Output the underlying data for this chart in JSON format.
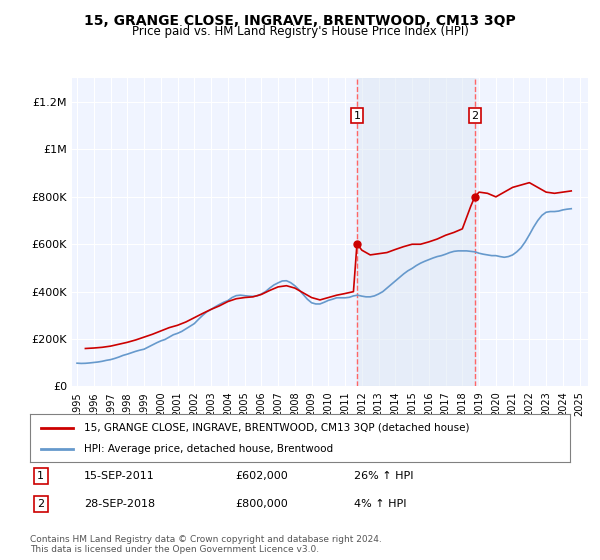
{
  "title": "15, GRANGE CLOSE, INGRAVE, BRENTWOOD, CM13 3QP",
  "subtitle": "Price paid vs. HM Land Registry's House Price Index (HPI)",
  "xlabel": "",
  "ylabel": "",
  "ylim": [
    0,
    1300000
  ],
  "xlim_start": 1995,
  "xlim_end": 2025.5,
  "yticks": [
    0,
    200000,
    400000,
    600000,
    800000,
    1000000,
    1200000
  ],
  "ytick_labels": [
    "£0",
    "£200K",
    "£400K",
    "£600K",
    "£800K",
    "£1M",
    "£1.2M"
  ],
  "xticks": [
    1995,
    1996,
    1997,
    1998,
    1999,
    2000,
    2001,
    2002,
    2003,
    2004,
    2005,
    2006,
    2007,
    2008,
    2009,
    2010,
    2011,
    2012,
    2013,
    2014,
    2015,
    2016,
    2017,
    2018,
    2019,
    2020,
    2021,
    2022,
    2023,
    2024,
    2025
  ],
  "property_color": "#cc0000",
  "hpi_color": "#6699cc",
  "background_color": "#ffffff",
  "plot_bg_color": "#f0f4ff",
  "grid_color": "#ffffff",
  "vline1_x": 2011.71,
  "vline2_x": 2018.74,
  "vline_color": "#ff6666",
  "marker1_x": 2011.71,
  "marker1_y": 602000,
  "marker2_x": 2018.74,
  "marker2_y": 800000,
  "legend_property": "15, GRANGE CLOSE, INGRAVE, BRENTWOOD, CM13 3QP (detached house)",
  "legend_hpi": "HPI: Average price, detached house, Brentwood",
  "annotation1_label": "1",
  "annotation1_date": "15-SEP-2011",
  "annotation1_price": "£602,000",
  "annotation1_hpi": "26% ↑ HPI",
  "annotation2_label": "2",
  "annotation2_date": "28-SEP-2018",
  "annotation2_price": "£800,000",
  "annotation2_hpi": "4% ↑ HPI",
  "footer": "Contains HM Land Registry data © Crown copyright and database right 2024.\nThis data is licensed under the Open Government Licence v3.0.",
  "hpi_data_x": [
    1995.0,
    1995.25,
    1995.5,
    1995.75,
    1996.0,
    1996.25,
    1996.5,
    1996.75,
    1997.0,
    1997.25,
    1997.5,
    1997.75,
    1998.0,
    1998.25,
    1998.5,
    1998.75,
    1999.0,
    1999.25,
    1999.5,
    1999.75,
    2000.0,
    2000.25,
    2000.5,
    2000.75,
    2001.0,
    2001.25,
    2001.5,
    2001.75,
    2002.0,
    2002.25,
    2002.5,
    2002.75,
    2003.0,
    2003.25,
    2003.5,
    2003.75,
    2004.0,
    2004.25,
    2004.5,
    2004.75,
    2005.0,
    2005.25,
    2005.5,
    2005.75,
    2006.0,
    2006.25,
    2006.5,
    2006.75,
    2007.0,
    2007.25,
    2007.5,
    2007.75,
    2008.0,
    2008.25,
    2008.5,
    2008.75,
    2009.0,
    2009.25,
    2009.5,
    2009.75,
    2010.0,
    2010.25,
    2010.5,
    2010.75,
    2011.0,
    2011.25,
    2011.5,
    2011.75,
    2012.0,
    2012.25,
    2012.5,
    2012.75,
    2013.0,
    2013.25,
    2013.5,
    2013.75,
    2014.0,
    2014.25,
    2014.5,
    2014.75,
    2015.0,
    2015.25,
    2015.5,
    2015.75,
    2016.0,
    2016.25,
    2016.5,
    2016.75,
    2017.0,
    2017.25,
    2017.5,
    2017.75,
    2018.0,
    2018.25,
    2018.5,
    2018.75,
    2019.0,
    2019.25,
    2019.5,
    2019.75,
    2020.0,
    2020.25,
    2020.5,
    2020.75,
    2021.0,
    2021.25,
    2021.5,
    2021.75,
    2022.0,
    2022.25,
    2022.5,
    2022.75,
    2023.0,
    2023.25,
    2023.5,
    2023.75,
    2024.0,
    2024.25,
    2024.5
  ],
  "hpi_data_y": [
    98000,
    97000,
    97500,
    99000,
    101000,
    103000,
    106000,
    110000,
    113000,
    118000,
    124000,
    131000,
    136000,
    142000,
    148000,
    153000,
    157000,
    166000,
    175000,
    184000,
    192000,
    198000,
    208000,
    218000,
    224000,
    232000,
    243000,
    254000,
    265000,
    283000,
    300000,
    315000,
    325000,
    336000,
    346000,
    355000,
    362000,
    375000,
    383000,
    385000,
    383000,
    381000,
    380000,
    382000,
    390000,
    400000,
    415000,
    428000,
    437000,
    445000,
    446000,
    438000,
    425000,
    408000,
    388000,
    368000,
    353000,
    348000,
    348000,
    355000,
    363000,
    368000,
    374000,
    374000,
    374000,
    376000,
    382000,
    385000,
    381000,
    378000,
    378000,
    382000,
    390000,
    400000,
    415000,
    430000,
    445000,
    460000,
    475000,
    488000,
    498000,
    510000,
    520000,
    528000,
    535000,
    542000,
    548000,
    552000,
    558000,
    565000,
    570000,
    572000,
    572000,
    572000,
    570000,
    568000,
    562000,
    558000,
    555000,
    552000,
    552000,
    548000,
    545000,
    548000,
    555000,
    568000,
    585000,
    610000,
    640000,
    672000,
    700000,
    722000,
    735000,
    738000,
    738000,
    740000,
    745000,
    748000,
    750000
  ],
  "property_data_x": [
    1995.5,
    1996.0,
    1996.5,
    1997.0,
    1997.5,
    1998.0,
    1998.5,
    1999.0,
    1999.5,
    2000.0,
    2000.5,
    2001.0,
    2001.5,
    2002.0,
    2002.5,
    2003.0,
    2003.5,
    2004.0,
    2004.5,
    2005.0,
    2005.5,
    2006.0,
    2006.5,
    2007.0,
    2007.5,
    2008.0,
    2008.5,
    2009.0,
    2009.5,
    2010.0,
    2010.5,
    2011.0,
    2011.5,
    2011.71,
    2012.0,
    2012.5,
    2013.0,
    2013.5,
    2014.0,
    2014.5,
    2015.0,
    2015.5,
    2016.0,
    2016.5,
    2017.0,
    2017.5,
    2018.0,
    2018.5,
    2018.74,
    2019.0,
    2019.5,
    2020.0,
    2020.5,
    2021.0,
    2021.5,
    2022.0,
    2022.5,
    2023.0,
    2023.5,
    2024.0,
    2024.5
  ],
  "property_data_y": [
    160000,
    162000,
    165000,
    170000,
    178000,
    186000,
    196000,
    208000,
    220000,
    234000,
    248000,
    258000,
    272000,
    290000,
    308000,
    325000,
    340000,
    358000,
    370000,
    375000,
    378000,
    388000,
    405000,
    420000,
    425000,
    415000,
    395000,
    375000,
    365000,
    375000,
    385000,
    392000,
    400000,
    602000,
    575000,
    555000,
    560000,
    565000,
    578000,
    590000,
    600000,
    600000,
    610000,
    622000,
    638000,
    650000,
    665000,
    760000,
    800000,
    820000,
    815000,
    800000,
    820000,
    840000,
    850000,
    860000,
    840000,
    820000,
    815000,
    820000,
    825000
  ]
}
